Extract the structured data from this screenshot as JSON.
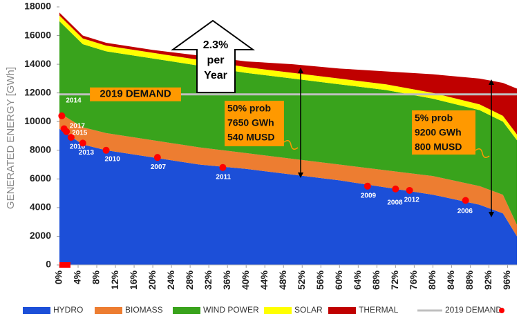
{
  "chart_data": {
    "type": "stacked_area",
    "y_label": "GENERATED ENERGY [GWh]",
    "x": [
      0,
      5,
      10,
      20,
      30,
      40,
      50,
      60,
      70,
      80,
      90,
      95,
      98
    ],
    "xlim": [
      0,
      98
    ],
    "xticks": [
      {
        "value": 0,
        "label": "0%"
      },
      {
        "value": 4,
        "label": "4%"
      },
      {
        "value": 8,
        "label": "8%"
      },
      {
        "value": 12,
        "label": "12%"
      },
      {
        "value": 16,
        "label": "16%"
      },
      {
        "value": 20,
        "label": "20%"
      },
      {
        "value": 24,
        "label": "24%"
      },
      {
        "value": 28,
        "label": "28%"
      },
      {
        "value": 32,
        "label": "32%"
      },
      {
        "value": 36,
        "label": "36%"
      },
      {
        "value": 40,
        "label": "40%"
      },
      {
        "value": 44,
        "label": "44%"
      },
      {
        "value": 48,
        "label": "48%"
      },
      {
        "value": 52,
        "label": "52%"
      },
      {
        "value": 56,
        "label": "56%"
      },
      {
        "value": 60,
        "label": "60%"
      },
      {
        "value": 64,
        "label": "64%"
      },
      {
        "value": 68,
        "label": "68%"
      },
      {
        "value": 72,
        "label": "72%"
      },
      {
        "value": 76,
        "label": "76%"
      },
      {
        "value": 80,
        "label": "80%"
      },
      {
        "value": 84,
        "label": "84%"
      },
      {
        "value": 88,
        "label": "88%"
      },
      {
        "value": 92,
        "label": "92%"
      },
      {
        "value": 96,
        "label": "96%"
      }
    ],
    "ylim": [
      0,
      18000
    ],
    "yticks": [
      0,
      2000,
      4000,
      6000,
      8000,
      10000,
      12000,
      14000,
      16000,
      18000
    ],
    "series": [
      {
        "name": "HYDRO",
        "color": "#1c4fd8",
        "values": [
          9500,
          8400,
          8000,
          7500,
          7000,
          6700,
          6300,
          5900,
          5400,
          4900,
          4200,
          3600,
          2000
        ]
      },
      {
        "name": "BIOMASS",
        "color": "#ed7d31",
        "values": [
          1100,
          1200,
          1200,
          1200,
          1200,
          1100,
          1100,
          1100,
          1200,
          1300,
          1300,
          1300,
          800
        ]
      },
      {
        "name": "WIND POWER",
        "color": "#39a31c",
        "values": [
          6400,
          5800,
          5700,
          5700,
          5700,
          5600,
          5600,
          5600,
          5600,
          5400,
          5300,
          5100,
          5900
        ]
      },
      {
        "name": "SOLAR",
        "color": "#ffff00",
        "values": [
          400,
          400,
          400,
          400,
          400,
          400,
          400,
          400,
          400,
          400,
          400,
          400,
          400
        ]
      },
      {
        "name": "THERMAL",
        "color": "#c00000",
        "values": [
          200,
          200,
          200,
          200,
          300,
          400,
          600,
          700,
          900,
          1300,
          1800,
          2300,
          3200
        ]
      }
    ],
    "demand": {
      "name": "2019 DEMAND",
      "value": 11900,
      "color": "#bfbfbf"
    },
    "years": {
      "color": "#ff0000",
      "x": [
        0.5,
        1,
        1.5,
        2.5,
        5,
        10,
        21,
        35,
        66,
        72,
        75,
        87
      ],
      "values": [
        10400,
        9500,
        9300,
        8900,
        8500,
        8000,
        7500,
        6800,
        5500,
        5300,
        5200,
        4500
      ],
      "labels": [
        "2014",
        "2017",
        "2015",
        "2016",
        "2013",
        "2010",
        "2007",
        "2011",
        "2009",
        "2008",
        "2012",
        "2006"
      ]
    },
    "growth_note": [
      "2.3%",
      "per",
      "Year"
    ],
    "notes": [
      [
        "50% prob",
        "7650 GWh",
        "540 MUSD"
      ],
      [
        "5% prob",
        "9200 GWh",
        "800 MUSD"
      ]
    ]
  }
}
